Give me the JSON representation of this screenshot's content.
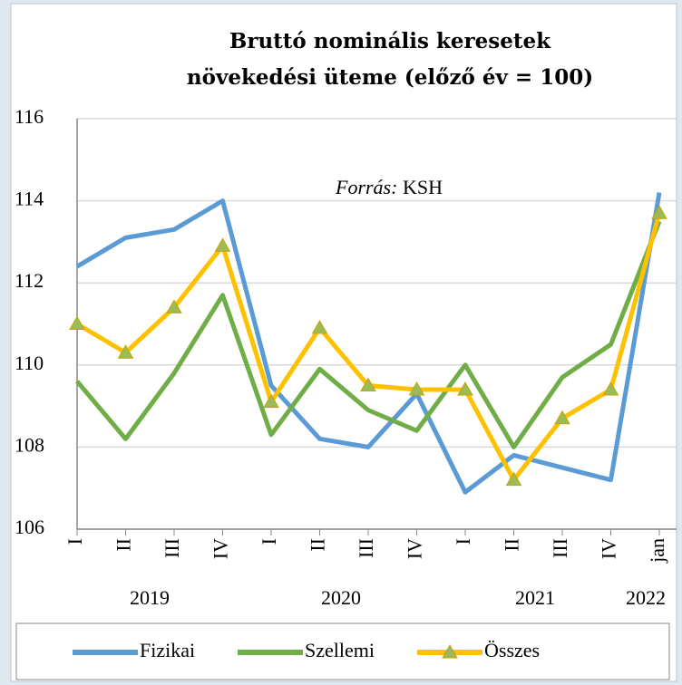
{
  "chart_data": {
    "type": "line",
    "title": [
      "Bruttó nominális keresetek",
      "növekedési üteme (előző év = 100)"
    ],
    "annotation": {
      "label": "Forrás:",
      "text": "KSH"
    },
    "categories": [
      "I",
      "II",
      "III",
      "IV",
      "I",
      "II",
      "III",
      "IV",
      "I",
      "II",
      "III",
      "IV",
      "jan"
    ],
    "year_labels": [
      "2019",
      "2020",
      "2021",
      "2022"
    ],
    "series": [
      {
        "name": "Fizikai",
        "color": "#5b9bd5",
        "values": [
          112.4,
          113.1,
          113.3,
          114.0,
          109.5,
          108.2,
          108.0,
          109.3,
          106.9,
          107.8,
          107.5,
          107.2,
          114.2
        ]
      },
      {
        "name": "Szellemi",
        "color": "#70ad47",
        "values": [
          109.6,
          108.2,
          109.8,
          111.7,
          108.3,
          109.9,
          108.9,
          108.4,
          110.0,
          108.0,
          109.7,
          110.5,
          113.5
        ]
      },
      {
        "name": "Összes",
        "color": "#ffc000",
        "marker": "triangle",
        "values": [
          111.0,
          110.3,
          111.4,
          112.9,
          109.1,
          110.9,
          109.5,
          109.4,
          109.4,
          107.2,
          108.7,
          109.4,
          113.7
        ]
      }
    ],
    "ylim": [
      106,
      116
    ],
    "yticks": [
      106,
      108,
      110,
      112,
      114,
      116
    ],
    "grid": true,
    "legend": "bottom"
  }
}
